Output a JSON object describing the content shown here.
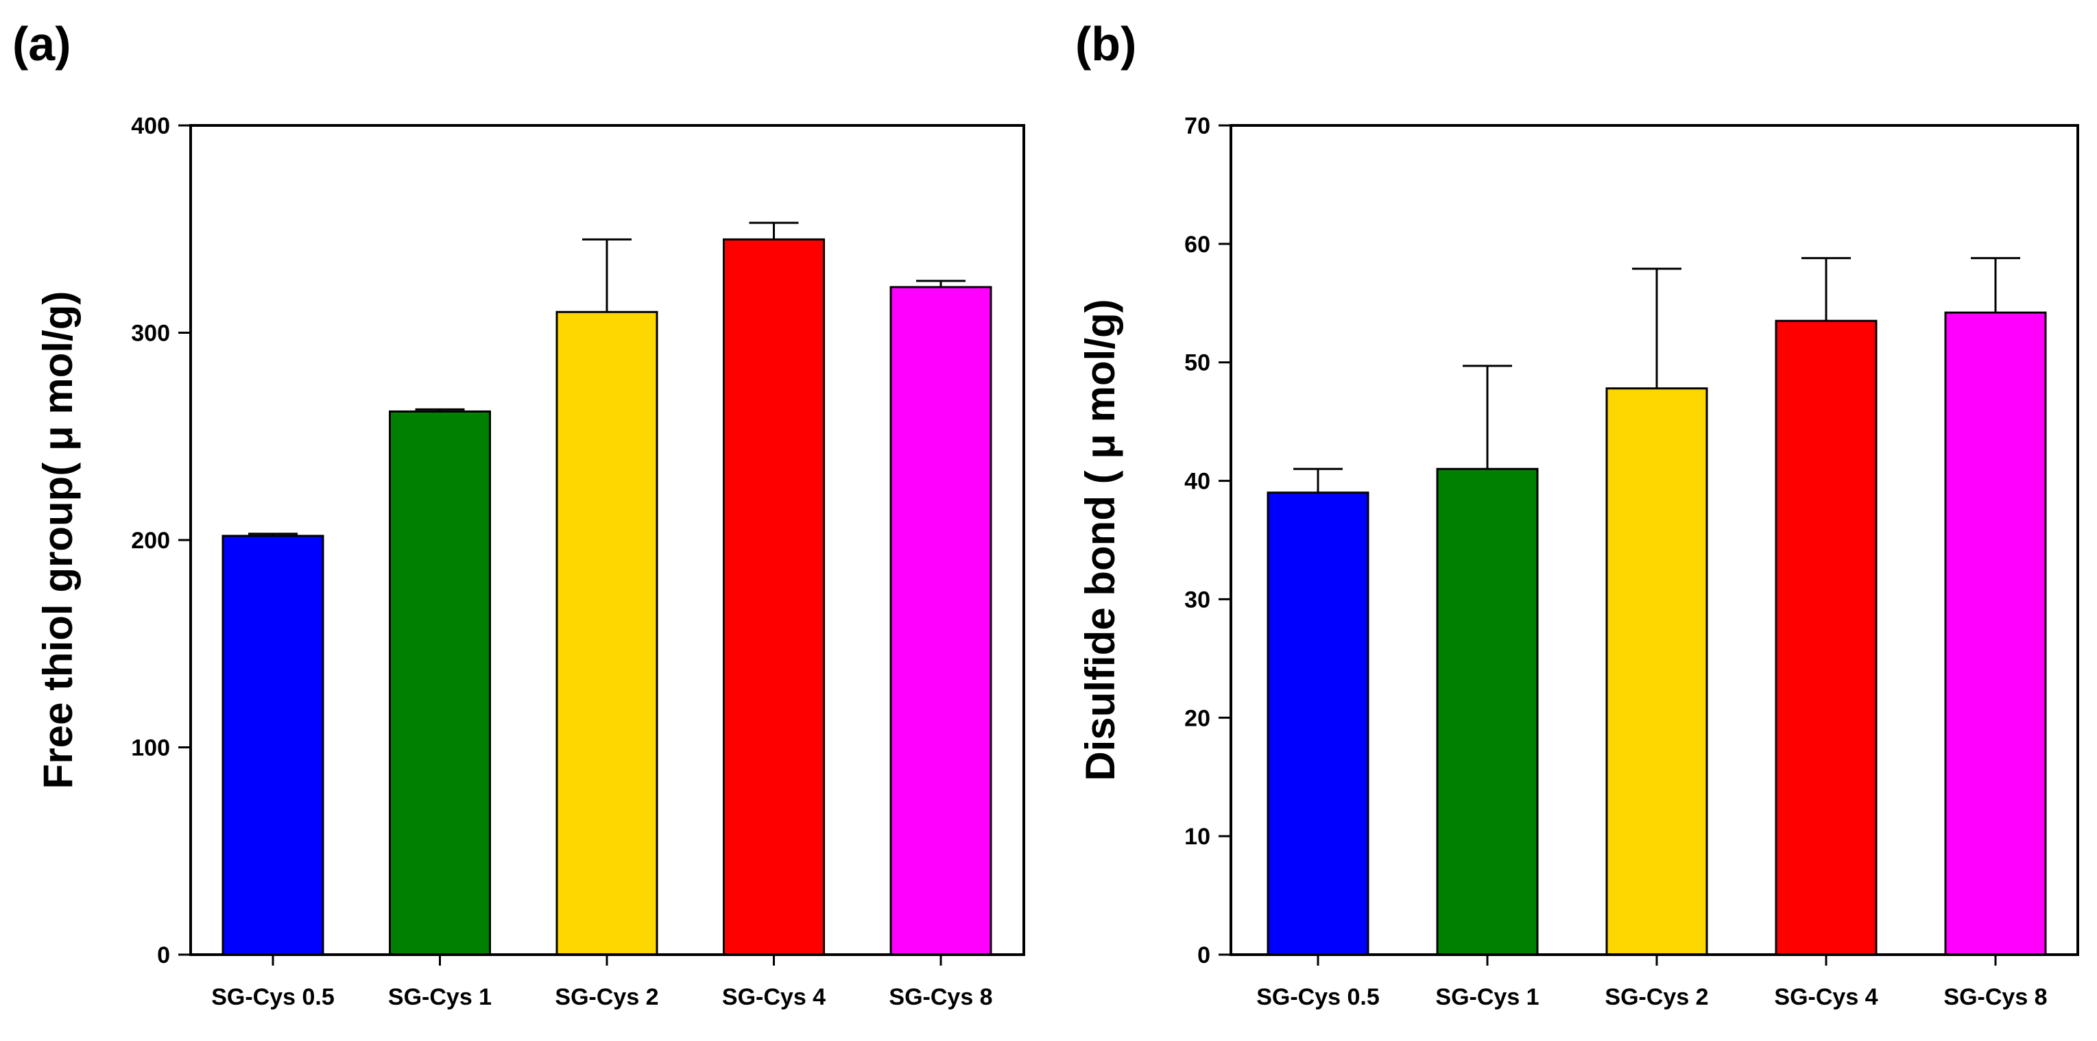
{
  "chart_data": [
    {
      "type": "bar",
      "panel_label": "(a)",
      "categories": [
        "SG-Cys 0.5",
        "SG-Cys 1",
        "SG-Cys 2",
        "SG-Cys 4",
        "SG-Cys 8"
      ],
      "values": [
        202,
        262,
        310,
        345,
        322
      ],
      "errors": [
        1,
        1,
        35,
        8,
        3
      ],
      "colors": [
        "#0000ff",
        "#008000",
        "#ffd700",
        "#ff0000",
        "#ff00ff"
      ],
      "xlabel": "",
      "ylabel": "Free thiol group( μ mol/g)",
      "ylim": [
        0,
        400
      ],
      "yticks": [
        0,
        100,
        200,
        300,
        400
      ],
      "grid": false
    },
    {
      "type": "bar",
      "panel_label": "(b)",
      "categories": [
        "SG-Cys 0.5",
        "SG-Cys 1",
        "SG-Cys 2",
        "SG-Cys 4",
        "SG-Cys 8"
      ],
      "values": [
        39,
        41,
        47.8,
        53.5,
        54.2
      ],
      "errors": [
        2,
        8.7,
        10.1,
        5.3,
        4.6
      ],
      "colors": [
        "#0000ff",
        "#008000",
        "#ffd700",
        "#ff0000",
        "#ff00ff"
      ],
      "xlabel": "",
      "ylabel": "Disulfide bond ( μ mol/g)",
      "ylim": [
        0,
        70
      ],
      "yticks": [
        0,
        10,
        20,
        30,
        40,
        50,
        60,
        70
      ],
      "grid": false
    }
  ]
}
